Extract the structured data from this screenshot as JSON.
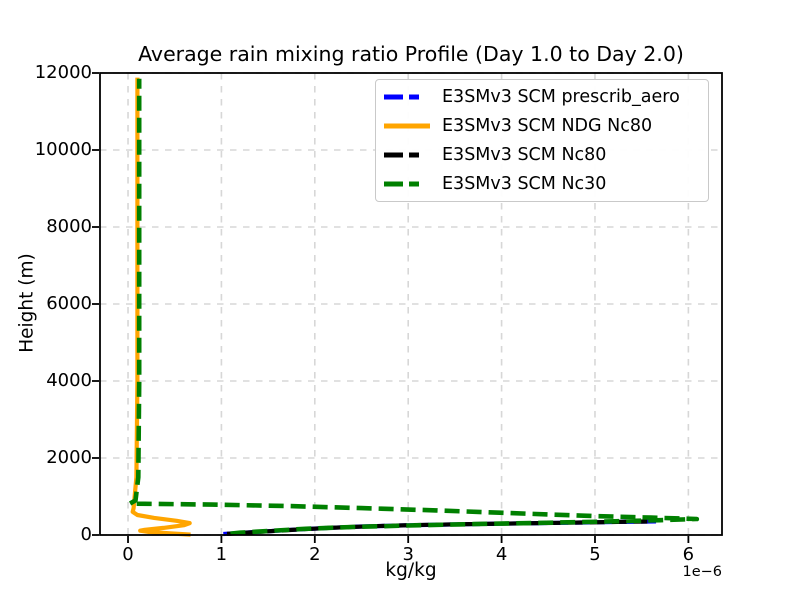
{
  "figure": {
    "title": "Average rain mixing ratio Profile (Day 1.0 to Day 2.0)",
    "background": "#ffffff"
  },
  "chart_data": {
    "type": "line",
    "title": "Average rain mixing ratio Profile (Day 1.0 to Day 2.0)",
    "xlabel": "kg/kg",
    "ylabel": "Height (m)",
    "x_offset_text": "1e−6",
    "x_units": "kg/kg scaled by 1e-6",
    "y_units": "m",
    "xlim": [
      -0.3,
      6.36
    ],
    "ylim": [
      0,
      12000
    ],
    "x_ticks": [
      0,
      1,
      2,
      3,
      4,
      5,
      6
    ],
    "y_ticks": [
      0,
      2000,
      4000,
      6000,
      8000,
      10000,
      12000
    ],
    "grid": true,
    "grid_color": "#d7d7d7",
    "legend_position": "upper right",
    "series": [
      {
        "name": "E3SMv3 SCM prescrib_aero",
        "slug": "prescrib-aero",
        "color": "#0000ff",
        "style": "dashed",
        "width": 4.2,
        "dash": "15 7",
        "dash_offset": 0,
        "points": [
          [
            1.02,
            25
          ],
          [
            1.35,
            75
          ],
          [
            1.75,
            135
          ],
          [
            2.1,
            180
          ],
          [
            2.5,
            220
          ],
          [
            3.0,
            252
          ],
          [
            3.6,
            280
          ],
          [
            4.2,
            302
          ],
          [
            4.8,
            322
          ],
          [
            5.3,
            340
          ],
          [
            5.67,
            352
          ]
        ]
      },
      {
        "name": "E3SMv3 SCM NDG Nc80",
        "slug": "ndg-nc80",
        "color": "#ffa500",
        "style": "solid",
        "width": 4.2,
        "dash": "",
        "dash_offset": 0,
        "points": [
          [
            0.1,
            11880
          ],
          [
            0.1,
            4000
          ],
          [
            0.09,
            1500
          ],
          [
            0.06,
            700
          ],
          [
            0.05,
            600
          ],
          [
            0.1,
            520
          ],
          [
            0.28,
            445
          ],
          [
            0.52,
            370
          ],
          [
            0.66,
            310
          ],
          [
            0.6,
            255
          ],
          [
            0.38,
            185
          ],
          [
            0.18,
            135
          ],
          [
            0.13,
            112
          ],
          [
            0.22,
            80
          ],
          [
            0.45,
            42
          ],
          [
            0.67,
            10
          ]
        ]
      },
      {
        "name": "E3SMv3 SCM Nc80",
        "slug": "nc80",
        "color": "#000000",
        "style": "dashed",
        "width": 4.2,
        "dash": "15 7",
        "dash_offset": 11,
        "points": [
          [
            1.06,
            28
          ],
          [
            1.4,
            80
          ],
          [
            1.8,
            140
          ],
          [
            2.15,
            185
          ],
          [
            2.55,
            224
          ],
          [
            3.05,
            256
          ],
          [
            3.65,
            283
          ],
          [
            4.25,
            305
          ],
          [
            4.85,
            325
          ],
          [
            5.3,
            342
          ],
          [
            5.56,
            350
          ]
        ]
      },
      {
        "name": "E3SMv3 SCM Nc30",
        "slug": "nc30",
        "color": "#008000",
        "style": "dashed",
        "width": 4.6,
        "dash": "15 7",
        "dash_offset": 5,
        "points": [
          [
            0.12,
            11850
          ],
          [
            0.12,
            4000
          ],
          [
            0.11,
            1500
          ],
          [
            0.08,
            900
          ],
          [
            0.02,
            815
          ],
          [
            0.9,
            790
          ],
          [
            1.7,
            752
          ],
          [
            2.5,
            700
          ],
          [
            3.3,
            640
          ],
          [
            4.1,
            570
          ],
          [
            5.0,
            492
          ],
          [
            5.6,
            452
          ],
          [
            6.09,
            415
          ],
          [
            5.7,
            385
          ],
          [
            5.1,
            348
          ],
          [
            4.4,
            315
          ],
          [
            3.7,
            282
          ],
          [
            3.0,
            248
          ],
          [
            2.4,
            208
          ],
          [
            1.9,
            160
          ],
          [
            1.5,
            105
          ],
          [
            1.2,
            60
          ],
          [
            1.03,
            22
          ]
        ]
      }
    ]
  }
}
